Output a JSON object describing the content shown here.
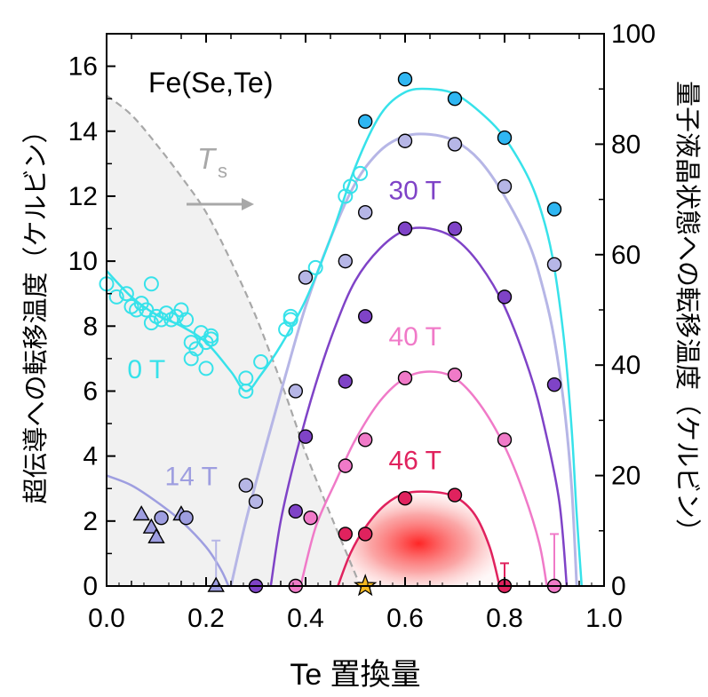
{
  "chart_data": {
    "type": "scatter",
    "title": "Fe(Se,Te)",
    "xlabel": "Te 置換量",
    "ylabel_left": "超伝導への転移温度（ケルビン）",
    "ylabel_right": "量子液晶状態への転移温度（ケルビン）",
    "xlim": [
      0.0,
      1.0
    ],
    "ylim_left": [
      0,
      17
    ],
    "ylim_right": [
      0,
      100
    ],
    "xticks": [
      "0.0",
      "0.2",
      "0.4",
      "0.6",
      "0.8",
      "1.0"
    ],
    "xtick_values": [
      0.0,
      0.2,
      0.4,
      0.6,
      0.8,
      1.0
    ],
    "yticks_left": [
      "0",
      "2",
      "4",
      "6",
      "8",
      "10",
      "12",
      "14",
      "16"
    ],
    "ytick_values_left": [
      0,
      2,
      4,
      6,
      8,
      10,
      12,
      14,
      16
    ],
    "yticks_right": [
      "0",
      "20",
      "40",
      "60",
      "80",
      "100"
    ],
    "ytick_values_right": [
      0,
      20,
      40,
      60,
      80,
      100
    ],
    "ts_label": "T",
    "ts_sub": "s",
    "colors": {
      "0T": "#37e2ea",
      "0T_fill": "#2fb6f2",
      "14T": "#9e9ee0",
      "14T_light": "#b6b6e6",
      "30T": "#7f43c7",
      "40T": "#f07ac8",
      "46T": "#e0225e",
      "ts_line": "#a8a8a8",
      "star": "#f5b921"
    },
    "series": [
      {
        "name": "0 T",
        "key": "0T",
        "open_points": [
          [
            0.0,
            9.3
          ],
          [
            0.02,
            8.9
          ],
          [
            0.04,
            9.0
          ],
          [
            0.05,
            8.6
          ],
          [
            0.06,
            8.5
          ],
          [
            0.07,
            8.7
          ],
          [
            0.08,
            8.5
          ],
          [
            0.09,
            9.3
          ],
          [
            0.09,
            8.1
          ],
          [
            0.1,
            8.3
          ],
          [
            0.11,
            8.2
          ],
          [
            0.12,
            8.4
          ],
          [
            0.13,
            8.2
          ],
          [
            0.14,
            8.3
          ],
          [
            0.15,
            8.5
          ],
          [
            0.16,
            8.2
          ],
          [
            0.17,
            7.5
          ],
          [
            0.17,
            7.0
          ],
          [
            0.18,
            7.3
          ],
          [
            0.19,
            7.8
          ],
          [
            0.2,
            7.5
          ],
          [
            0.21,
            7.7
          ],
          [
            0.21,
            7.6
          ],
          [
            0.2,
            6.7
          ],
          [
            0.28,
            6.4
          ],
          [
            0.28,
            6.0
          ],
          [
            0.31,
            6.9
          ],
          [
            0.36,
            7.9
          ],
          [
            0.37,
            8.2
          ],
          [
            0.37,
            8.3
          ],
          [
            0.42,
            9.8
          ],
          [
            0.48,
            12.0
          ],
          [
            0.49,
            12.3
          ],
          [
            0.51,
            12.7
          ]
        ],
        "filled_points": [
          [
            0.52,
            14.3
          ],
          [
            0.6,
            15.6
          ],
          [
            0.7,
            15.0
          ],
          [
            0.8,
            13.8
          ],
          [
            0.9,
            11.6
          ]
        ],
        "curve": [
          [
            0.0,
            9.7
          ],
          [
            0.05,
            8.9
          ],
          [
            0.1,
            8.35
          ],
          [
            0.15,
            8.0
          ],
          [
            0.2,
            7.5
          ],
          [
            0.25,
            6.6
          ],
          [
            0.28,
            6.0
          ],
          [
            0.31,
            6.5
          ],
          [
            0.35,
            7.4
          ],
          [
            0.4,
            8.8
          ],
          [
            0.45,
            10.7
          ],
          [
            0.5,
            12.9
          ],
          [
            0.55,
            14.5
          ],
          [
            0.6,
            15.2
          ],
          [
            0.65,
            15.3
          ],
          [
            0.7,
            15.15
          ],
          [
            0.75,
            14.6
          ],
          [
            0.8,
            13.8
          ],
          [
            0.85,
            12.5
          ],
          [
            0.88,
            11.2
          ],
          [
            0.9,
            9.8
          ],
          [
            0.92,
            7.5
          ],
          [
            0.935,
            4.8
          ],
          [
            0.945,
            2.2
          ],
          [
            0.955,
            0.0
          ]
        ]
      },
      {
        "name": "14 T",
        "key": "14T",
        "triangles": [
          [
            0.07,
            2.2
          ],
          [
            0.09,
            1.8
          ],
          [
            0.1,
            1.5
          ],
          [
            0.15,
            2.2
          ],
          [
            0.22,
            0.0
          ]
        ],
        "open_points": [
          [
            0.11,
            2.1
          ],
          [
            0.16,
            2.1
          ]
        ],
        "filled_points": [
          [
            0.28,
            3.1
          ],
          [
            0.3,
            2.6
          ],
          [
            0.38,
            6.0
          ],
          [
            0.4,
            9.5
          ],
          [
            0.48,
            10.0
          ],
          [
            0.52,
            11.5
          ],
          [
            0.6,
            13.7
          ],
          [
            0.7,
            13.6
          ],
          [
            0.8,
            12.3
          ],
          [
            0.9,
            9.9
          ]
        ],
        "curve_low": [
          [
            0.0,
            3.4
          ],
          [
            0.05,
            3.1
          ],
          [
            0.1,
            2.6
          ],
          [
            0.15,
            2.0
          ],
          [
            0.2,
            1.2
          ],
          [
            0.23,
            0.5
          ],
          [
            0.245,
            0.0
          ]
        ],
        "curve_main": [
          [
            0.25,
            0.0
          ],
          [
            0.28,
            2.0
          ],
          [
            0.32,
            4.3
          ],
          [
            0.36,
            6.5
          ],
          [
            0.4,
            8.6
          ],
          [
            0.45,
            10.7
          ],
          [
            0.5,
            12.4
          ],
          [
            0.55,
            13.4
          ],
          [
            0.6,
            13.85
          ],
          [
            0.65,
            13.9
          ],
          [
            0.7,
            13.7
          ],
          [
            0.75,
            13.1
          ],
          [
            0.8,
            12.0
          ],
          [
            0.85,
            10.5
          ],
          [
            0.88,
            9.0
          ],
          [
            0.9,
            7.6
          ],
          [
            0.92,
            5.5
          ],
          [
            0.935,
            3.0
          ],
          [
            0.945,
            0.0
          ]
        ]
      },
      {
        "name": "30 T",
        "key": "30T",
        "filled_points": [
          [
            0.3,
            0.0
          ],
          [
            0.38,
            2.3
          ],
          [
            0.4,
            4.6
          ],
          [
            0.48,
            6.3
          ],
          [
            0.52,
            8.3
          ],
          [
            0.6,
            11.0
          ],
          [
            0.7,
            11.0
          ],
          [
            0.8,
            8.9
          ],
          [
            0.9,
            6.2
          ]
        ],
        "curve": [
          [
            0.33,
            0.0
          ],
          [
            0.35,
            2.0
          ],
          [
            0.38,
            4.0
          ],
          [
            0.42,
            6.2
          ],
          [
            0.46,
            8.0
          ],
          [
            0.5,
            9.4
          ],
          [
            0.55,
            10.4
          ],
          [
            0.6,
            10.95
          ],
          [
            0.65,
            11.0
          ],
          [
            0.7,
            10.7
          ],
          [
            0.75,
            9.9
          ],
          [
            0.8,
            8.6
          ],
          [
            0.85,
            6.6
          ],
          [
            0.88,
            4.9
          ],
          [
            0.91,
            2.6
          ],
          [
            0.925,
            0.0
          ]
        ]
      },
      {
        "name": "40 T",
        "key": "40T",
        "filled_points": [
          [
            0.38,
            0.0
          ],
          [
            0.41,
            2.1
          ],
          [
            0.48,
            3.7
          ],
          [
            0.52,
            4.5
          ],
          [
            0.6,
            6.4
          ],
          [
            0.7,
            6.5
          ],
          [
            0.8,
            4.5
          ],
          [
            0.9,
            0.0
          ]
        ],
        "curve": [
          [
            0.39,
            0.0
          ],
          [
            0.42,
            1.8
          ],
          [
            0.46,
            3.2
          ],
          [
            0.5,
            4.5
          ],
          [
            0.55,
            5.7
          ],
          [
            0.6,
            6.4
          ],
          [
            0.65,
            6.6
          ],
          [
            0.7,
            6.4
          ],
          [
            0.75,
            5.6
          ],
          [
            0.8,
            4.3
          ],
          [
            0.84,
            2.8
          ],
          [
            0.87,
            1.3
          ],
          [
            0.885,
            0.0
          ]
        ]
      },
      {
        "name": "46 T",
        "key": "46T",
        "filled_points": [
          [
            0.48,
            1.6
          ],
          [
            0.52,
            1.6
          ],
          [
            0.6,
            2.7
          ],
          [
            0.7,
            2.8
          ],
          [
            0.8,
            0.0
          ]
        ],
        "curve": [
          [
            0.465,
            0.0
          ],
          [
            0.49,
            1.0
          ],
          [
            0.52,
            1.8
          ],
          [
            0.56,
            2.5
          ],
          [
            0.6,
            2.85
          ],
          [
            0.65,
            2.9
          ],
          [
            0.7,
            2.75
          ],
          [
            0.74,
            2.2
          ],
          [
            0.77,
            1.2
          ],
          [
            0.79,
            0.0
          ]
        ]
      }
    ],
    "ts_curve": [
      [
        0.0,
        15.1
      ],
      [
        0.05,
        14.5
      ],
      [
        0.1,
        13.6
      ],
      [
        0.15,
        12.6
      ],
      [
        0.2,
        11.5
      ],
      [
        0.25,
        10.0
      ],
      [
        0.3,
        8.3
      ],
      [
        0.35,
        6.3
      ],
      [
        0.38,
        5.0
      ],
      [
        0.4,
        4.1
      ],
      [
        0.45,
        2.2
      ],
      [
        0.48,
        1.1
      ],
      [
        0.51,
        0.0
      ]
    ],
    "ts_star": [
      0.52,
      0.0
    ],
    "labels": [
      {
        "text": "0 T",
        "key": "0T",
        "x": 0.08,
        "y": 6.4
      },
      {
        "text": "14 T",
        "key": "14T",
        "x": 0.17,
        "y": 3.1
      },
      {
        "text": "30 T",
        "key": "30T",
        "x": 0.62,
        "y": 11.9
      },
      {
        "text": "40 T",
        "key": "40T",
        "x": 0.62,
        "y": 7.4
      },
      {
        "text": "46 T",
        "key": "46T",
        "x": 0.62,
        "y": 3.6
      }
    ],
    "errorbars": [
      {
        "key": "14T",
        "x": 0.22,
        "ylo": 0.0,
        "yhi": 1.4
      },
      {
        "key": "40T",
        "x": 0.9,
        "ylo": 0.0,
        "yhi": 1.6
      },
      {
        "key": "46T",
        "x": 0.8,
        "ylo": 0.0,
        "yhi": 0.7
      }
    ]
  }
}
